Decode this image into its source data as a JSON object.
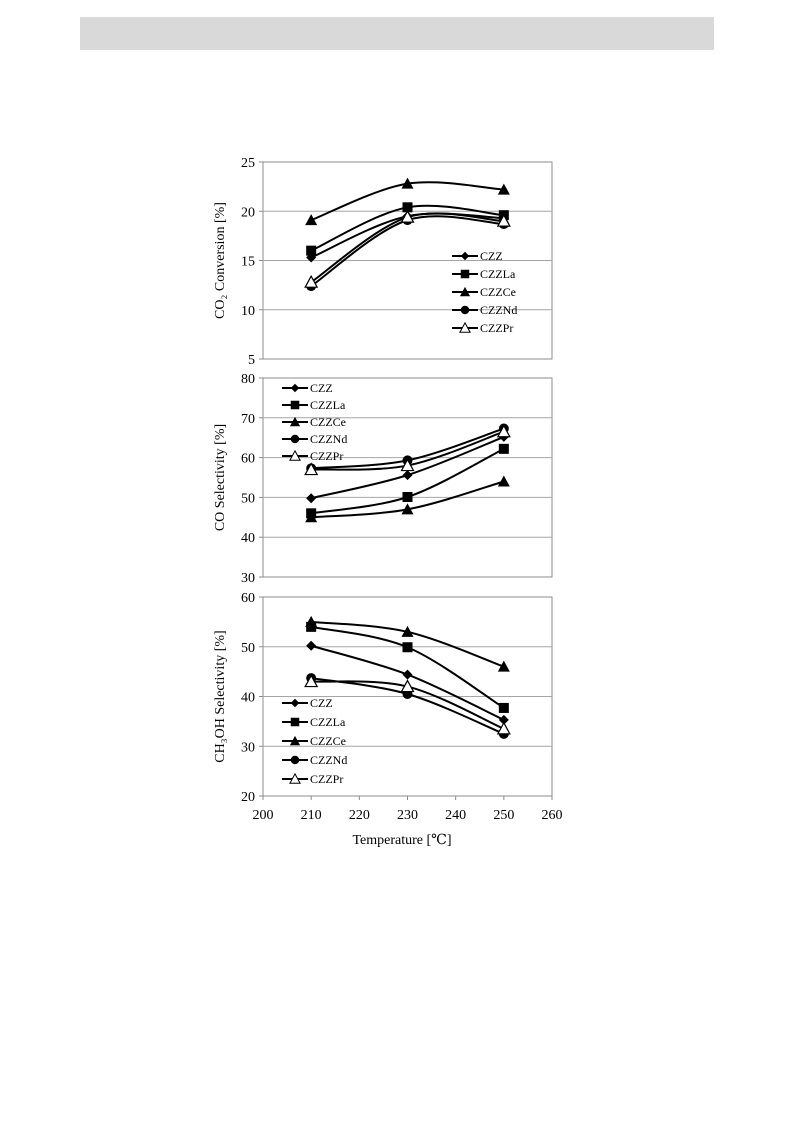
{
  "header_bar": {
    "color": "#d9d9d9"
  },
  "figure": {
    "x_axis": {
      "label": "Temperature [℃]",
      "ticks": [
        "200",
        "210",
        "220",
        "230",
        "240",
        "250",
        "260"
      ],
      "range": [
        200,
        260
      ]
    }
  },
  "chart_data": [
    {
      "type": "line",
      "ylabel": "CO₂ Conversion [%]",
      "ylim": [
        5,
        25
      ],
      "yticks": [
        "5",
        "10",
        "15",
        "20",
        "25"
      ],
      "grid": true,
      "legend_position": "lower-right",
      "x": [
        210,
        230,
        250
      ],
      "series": [
        {
          "name": "CZZ",
          "marker": "diamond",
          "values": [
            15.3,
            19.5,
            19.3
          ]
        },
        {
          "name": "CZZLa",
          "marker": "square",
          "values": [
            16.0,
            20.4,
            19.6
          ]
        },
        {
          "name": "CZZCe",
          "marker": "triangle",
          "values": [
            19.1,
            22.8,
            22.2
          ]
        },
        {
          "name": "CZZNd",
          "marker": "circle",
          "values": [
            12.4,
            19.1,
            18.7
          ]
        },
        {
          "name": "CZZPr",
          "marker": "open-triangle",
          "values": [
            12.8,
            19.4,
            19.0
          ]
        }
      ]
    },
    {
      "type": "line",
      "ylabel": "CO Selectivity  [%]",
      "ylim": [
        30,
        80
      ],
      "yticks": [
        "30",
        "40",
        "50",
        "60",
        "70",
        "80"
      ],
      "grid": true,
      "legend_position": "upper-left",
      "x": [
        210,
        230,
        250
      ],
      "series": [
        {
          "name": "CZZ",
          "marker": "diamond",
          "values": [
            49.8,
            55.6,
            65.2
          ]
        },
        {
          "name": "CZZLa",
          "marker": "square",
          "values": [
            46.0,
            50.1,
            62.2
          ]
        },
        {
          "name": "CZZCe",
          "marker": "triangle",
          "values": [
            45.0,
            47.0,
            54.0
          ]
        },
        {
          "name": "CZZNd",
          "marker": "circle",
          "values": [
            57.3,
            59.3,
            67.3
          ]
        },
        {
          "name": "CZZPr",
          "marker": "open-triangle",
          "values": [
            57.0,
            58.0,
            66.5
          ]
        }
      ]
    },
    {
      "type": "line",
      "ylabel": "CH₃OH Selectivity  [%]",
      "ylim": [
        20,
        60
      ],
      "yticks": [
        "20",
        "30",
        "40",
        "50",
        "60"
      ],
      "grid": true,
      "legend_position": "lower-left",
      "x": [
        210,
        230,
        250
      ],
      "series": [
        {
          "name": "CZZ",
          "marker": "diamond",
          "values": [
            50.2,
            44.4,
            35.3
          ]
        },
        {
          "name": "CZZLa",
          "marker": "square",
          "values": [
            54.0,
            49.9,
            37.7
          ]
        },
        {
          "name": "CZZCe",
          "marker": "triangle",
          "values": [
            55.0,
            53.0,
            46.0
          ]
        },
        {
          "name": "CZZNd",
          "marker": "circle",
          "values": [
            43.7,
            40.5,
            32.5
          ]
        },
        {
          "name": "CZZPr",
          "marker": "open-triangle",
          "values": [
            43.0,
            42.0,
            33.5
          ]
        }
      ]
    }
  ]
}
